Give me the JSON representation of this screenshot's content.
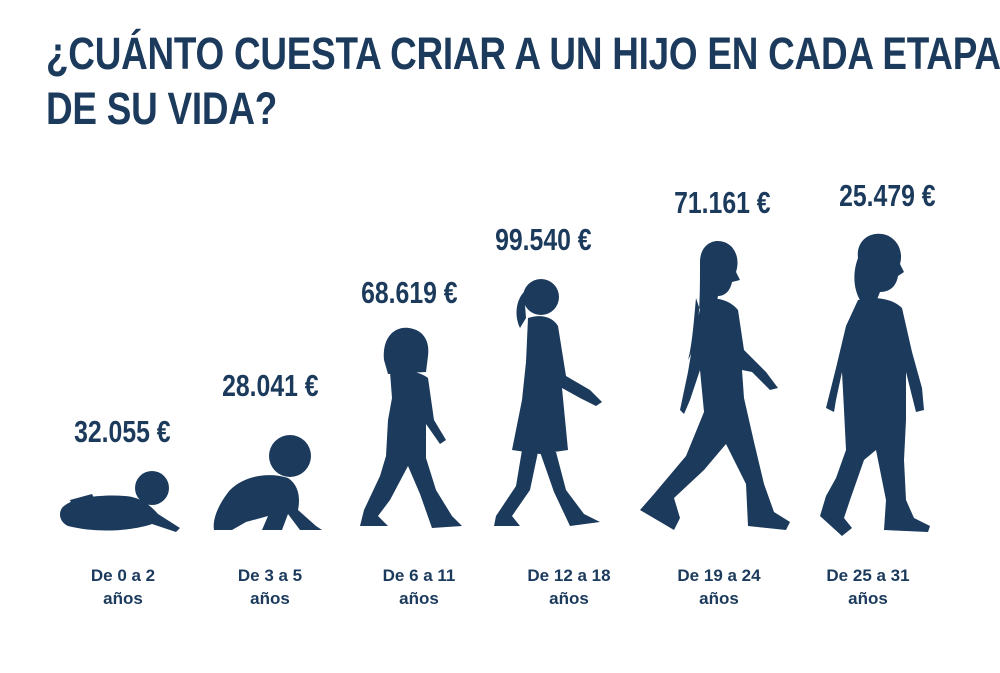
{
  "title": {
    "line1": "¿CUÁNTO CUESTA CRIAR A UN HIJO EN CADA ETAPA",
    "line2": "DE SU VIDA?"
  },
  "stages": [
    {
      "amount": "32.055 €",
      "label_line1": "De 0 a 2",
      "label_line2": "años",
      "icon": "lying-baby-icon"
    },
    {
      "amount": "28.041 €",
      "label_line1": "De 3 a 5",
      "label_line2": "años",
      "icon": "crawling-baby-icon"
    },
    {
      "amount": "68.619 €",
      "label_line1": "De 6 a 11",
      "label_line2": "años",
      "icon": "child-walking-icon"
    },
    {
      "amount": "99.540 €",
      "label_line1": "De 12 a 18",
      "label_line2": "años",
      "icon": "girl-walking-icon"
    },
    {
      "amount": "71.161 €",
      "label_line1": "De 19 a 24",
      "label_line2": "años",
      "icon": "young-woman-walking-icon"
    },
    {
      "amount": "25.479 €",
      "label_line1": "De 25 a 31",
      "label_line2": "años",
      "icon": "adult-woman-walking-icon"
    }
  ],
  "colors": {
    "primary": "#1b3a5c",
    "background": "#ffffff"
  }
}
